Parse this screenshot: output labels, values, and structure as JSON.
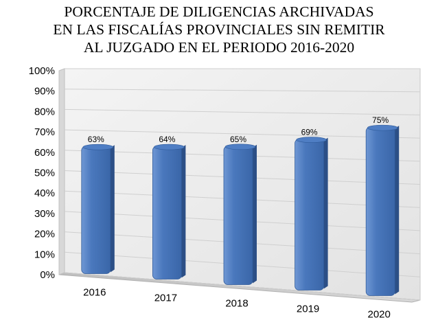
{
  "chart_data": {
    "type": "bar",
    "title_lines": [
      "PORCENTAJE DE DILIGENCIAS ARCHIVADAS",
      "EN LAS FISCALÍAS PROVINCIALES SIN REMITIR",
      "AL JUZGADO EN EL PERIODO 2016-2020"
    ],
    "categories": [
      "2016",
      "2017",
      "2018",
      "2019",
      "2020"
    ],
    "values": [
      63,
      64,
      65,
      69,
      75
    ],
    "data_labels": [
      "63%",
      "64%",
      "65%",
      "69%",
      "75%"
    ],
    "ylim": [
      0,
      100
    ],
    "yticks": [
      "0%",
      "10%",
      "20%",
      "30%",
      "40%",
      "50%",
      "60%",
      "70%",
      "80%",
      "90%",
      "100%"
    ],
    "xlabel": "",
    "ylabel": "",
    "grid": true,
    "legend": "none",
    "bar_color": "#4a78bd",
    "bar_dark_color": "#2c4f86"
  }
}
